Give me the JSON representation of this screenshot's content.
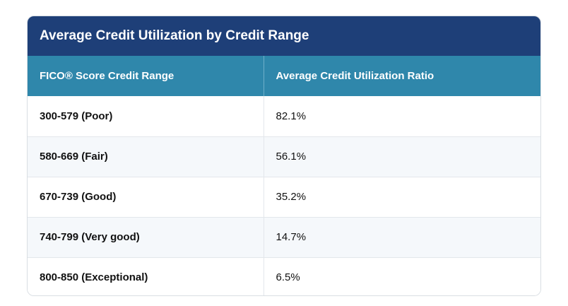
{
  "table": {
    "title": "Average Credit Utilization by Credit Range",
    "headers": [
      "FICO® Score Credit Range",
      "Average Credit Utilization Ratio"
    ],
    "rows": [
      {
        "range": "300-579 (Poor)",
        "ratio": "82.1%"
      },
      {
        "range": "580-669 (Fair)",
        "ratio": "56.1%"
      },
      {
        "range": "670-739 (Good)",
        "ratio": "35.2%"
      },
      {
        "range": "740-799 (Very good)",
        "ratio": "14.7%"
      },
      {
        "range": "800-850 (Exceptional)",
        "ratio": "6.5%"
      }
    ]
  },
  "colors": {
    "title_bg": "#1e3f78",
    "header_bg": "#2f87ab",
    "stripe_bg": "#f5f8fb"
  }
}
